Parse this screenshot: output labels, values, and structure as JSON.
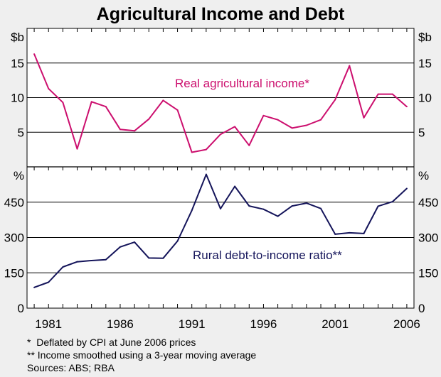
{
  "title": "Agricultural Income and Debt",
  "colors": {
    "income": "#cc0f6e",
    "debt": "#14145a",
    "plot_bg": "#ffffff",
    "page_bg": "#efefef"
  },
  "chart_data": [
    {
      "type": "line",
      "unit_left": "$b",
      "unit_right": "$b",
      "ylim": [
        0,
        20
      ],
      "yticks": [
        5,
        10,
        15
      ],
      "xlim": [
        1979.5,
        2006.5
      ],
      "series": [
        {
          "name": "Real agricultural income*",
          "x": [
            1980,
            1981,
            1982,
            1983,
            1984,
            1985,
            1986,
            1987,
            1988,
            1989,
            1990,
            1991,
            1992,
            1993,
            1994,
            1995,
            1996,
            1997,
            1998,
            1999,
            2000,
            2001,
            2002,
            2003,
            2004,
            2005,
            2006
          ],
          "values": [
            16.3,
            11.3,
            9.3,
            2.6,
            9.4,
            8.7,
            5.4,
            5.2,
            6.9,
            9.6,
            8.2,
            2.1,
            2.5,
            4.7,
            5.8,
            3.1,
            7.4,
            6.8,
            5.6,
            6.0,
            6.8,
            9.7,
            14.6,
            7.1,
            10.5,
            10.5,
            8.7
          ]
        }
      ]
    },
    {
      "type": "line",
      "unit_left": "%",
      "unit_right": "%",
      "ylim": [
        0,
        600
      ],
      "yticks": [
        0,
        150,
        300,
        450
      ],
      "xlim": [
        1979.5,
        2006.5
      ],
      "xticks": [
        1981,
        1986,
        1991,
        1996,
        2001,
        2006
      ],
      "series": [
        {
          "name": "Rural debt-to-income ratio**",
          "x": [
            1980,
            1981,
            1982,
            1983,
            1984,
            1985,
            1986,
            1987,
            1988,
            1989,
            1990,
            1991,
            1992,
            1993,
            1994,
            1995,
            1996,
            1997,
            1998,
            1999,
            2000,
            2001,
            2002,
            2003,
            2004,
            2005,
            2006
          ],
          "values": [
            88,
            110,
            175,
            197,
            202,
            206,
            260,
            280,
            213,
            212,
            285,
            415,
            568,
            422,
            517,
            434,
            420,
            390,
            434,
            446,
            423,
            314,
            320,
            317,
            433,
            452,
            508
          ]
        }
      ]
    }
  ],
  "notes": [
    "*  Deflated by CPI at June 2006 prices",
    "** Income smoothed using a 3-year moving average",
    "Sources: ABS; RBA"
  ]
}
